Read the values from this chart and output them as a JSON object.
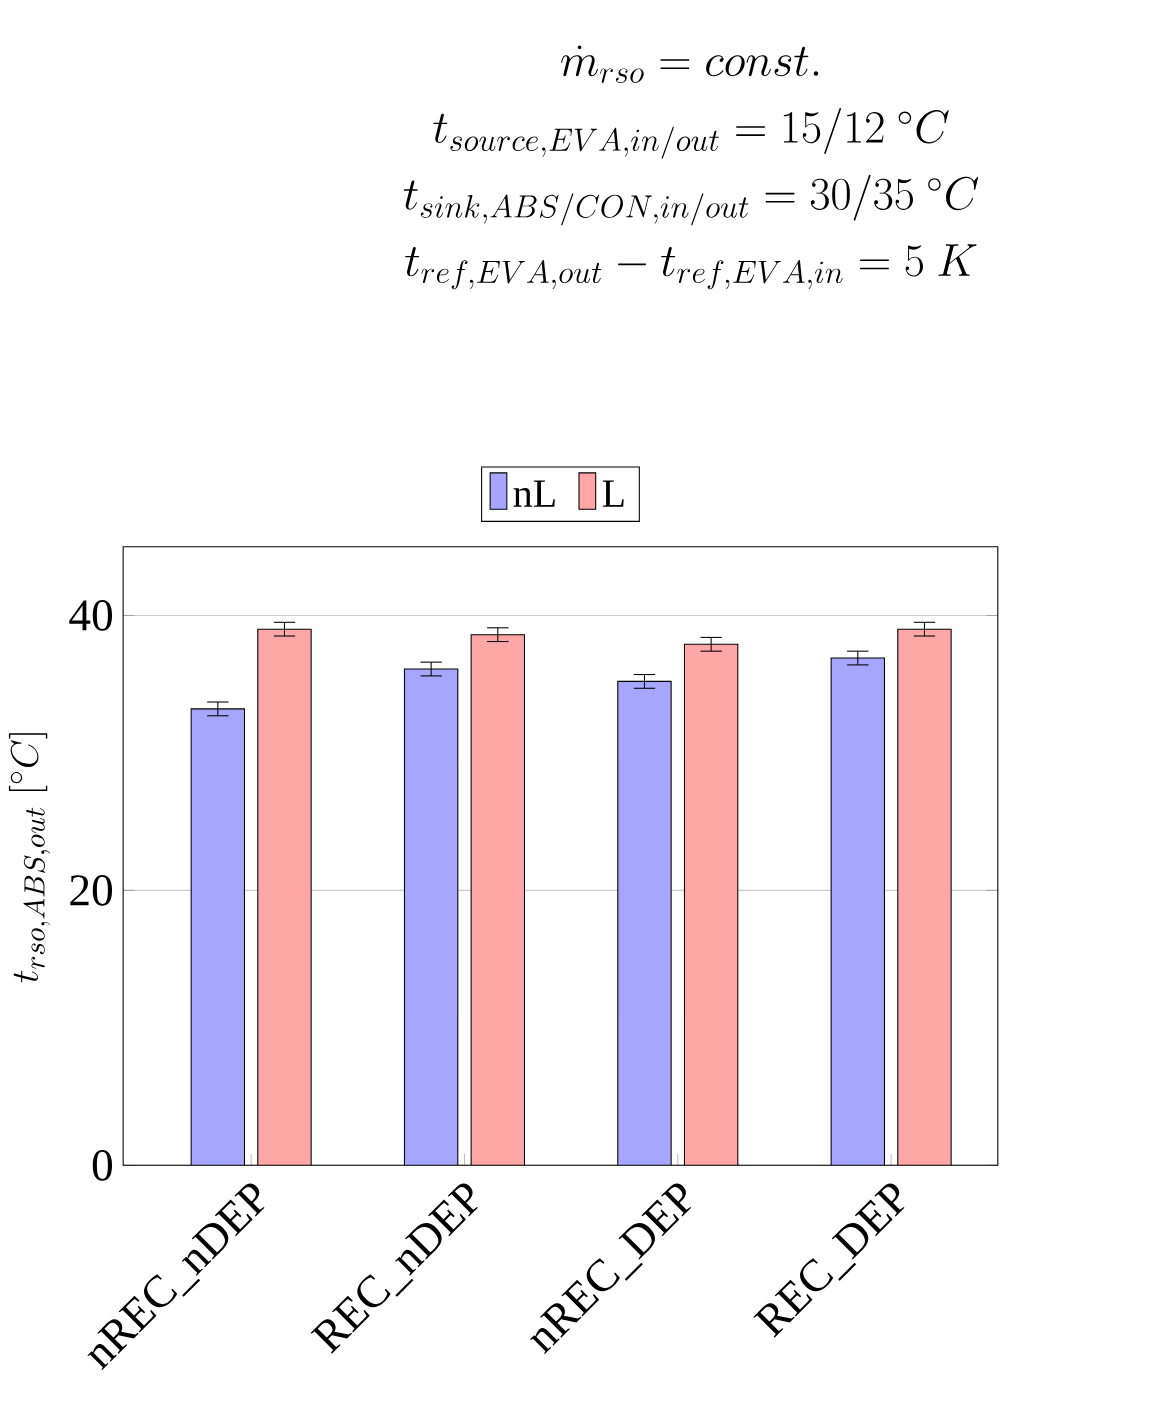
{
  "chart_data": {
    "type": "bar",
    "title": "\\dot{m}_{rso} = const.",
    "annotations": [
      "t_{source,EVA,in/out} = 15/12\\ {}^{\\circ}C",
      "t_{sink,ABS/CON,in/out} = 30/35\\ {}^{\\circ}C",
      "t_{ref,EVA,out} - t_{ref,EVA,in} = 5\\ K"
    ],
    "ylabel": "t_{rso,ABS,out}\\ [{}^{\\circ}C]",
    "categories": [
      "nREC_nDEP",
      "REC_nDEP",
      "nREC_DEP",
      "REC_DEP"
    ],
    "series": [
      {
        "name": "nL",
        "color": "#a6a6ff",
        "values": [
          33.2,
          36.1,
          35.2,
          36.9
        ],
        "errors": [
          0.5,
          0.5,
          0.5,
          0.5
        ]
      },
      {
        "name": "L",
        "color": "#ffa6a6",
        "values": [
          39.0,
          38.6,
          37.9,
          39.0
        ],
        "errors": [
          0.5,
          0.5,
          0.5,
          0.5
        ]
      }
    ],
    "ylim": [
      0,
      45
    ],
    "yticks": [
      0,
      20,
      40
    ],
    "grid": "y",
    "legend": "top"
  }
}
